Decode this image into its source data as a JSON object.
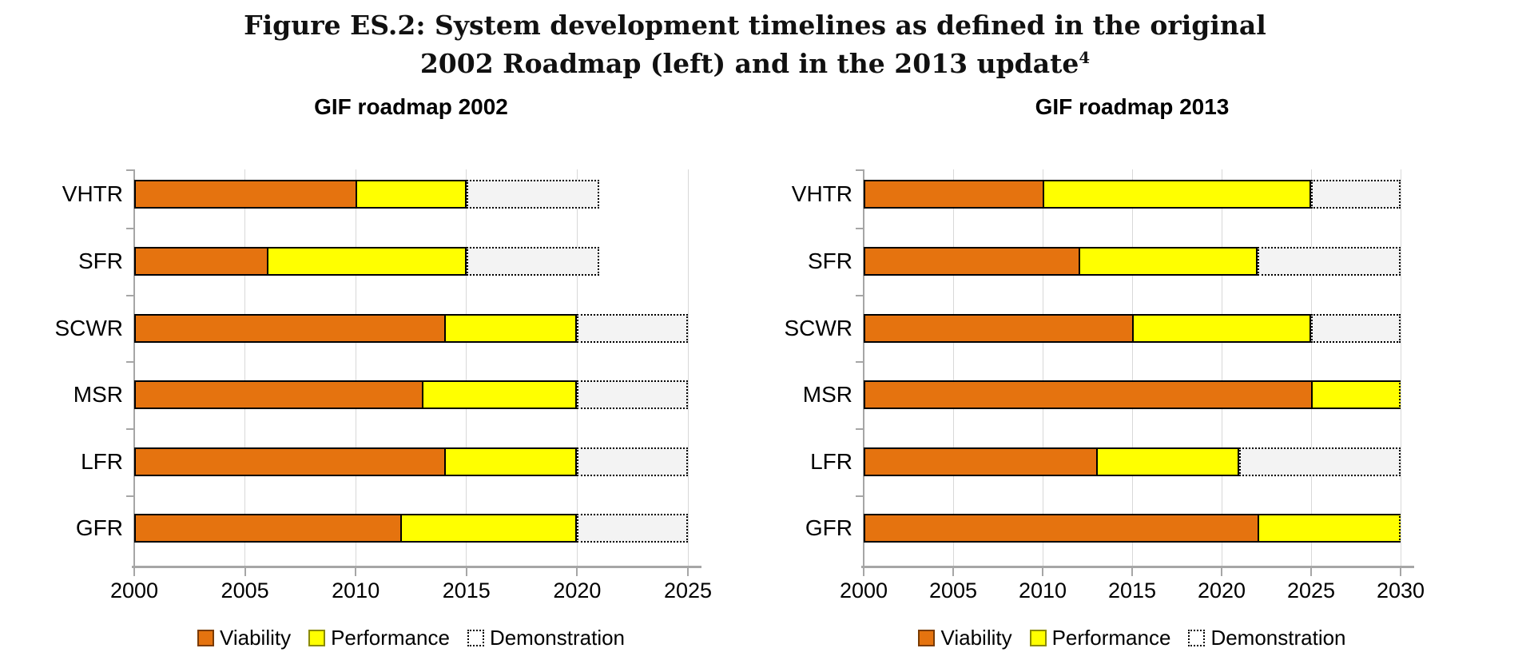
{
  "figure": {
    "title_line1": "Figure ES.2: System development timelines as defined in the original",
    "title_line2": "2002 Roadmap (left) and in the 2013 update",
    "title_superscript": "4"
  },
  "legend": {
    "viability": "Viability",
    "performance": "Performance",
    "demonstration": "Demonstration"
  },
  "colors": {
    "viability": "#E5730F",
    "performance": "#FFFF00",
    "demonstration_fill": "#F3F3F3",
    "bar_border": "#000000",
    "gridline": "#D8D8D8",
    "axis": "#A6A6A6"
  },
  "chart_data": [
    {
      "type": "bar",
      "orientation": "horizontal-stacked-timeline",
      "title": "GIF roadmap 2002",
      "x_axis": {
        "min": 2000,
        "max": 2025,
        "tick_step": 5,
        "ticks": [
          2000,
          2005,
          2010,
          2015,
          2020,
          2025
        ]
      },
      "categories": [
        "VHTR",
        "SFR",
        "SCWR",
        "MSR",
        "LFR",
        "GFR"
      ],
      "legend_position": "bottom",
      "grid": true,
      "rows": [
        {
          "label": "VHTR",
          "viability": [
            2000,
            2010
          ],
          "performance": [
            2010,
            2015
          ],
          "demonstration": [
            2015,
            2021
          ],
          "clipped": false
        },
        {
          "label": "SFR",
          "viability": [
            2000,
            2006
          ],
          "performance": [
            2006,
            2015
          ],
          "demonstration": [
            2015,
            2021
          ],
          "clipped": false
        },
        {
          "label": "SCWR",
          "viability": [
            2000,
            2014
          ],
          "performance": [
            2014,
            2020
          ],
          "demonstration": [
            2020,
            2025
          ],
          "clipped": false
        },
        {
          "label": "MSR",
          "viability": [
            2000,
            2013
          ],
          "performance": [
            2013,
            2020
          ],
          "demonstration": [
            2020,
            2025
          ],
          "clipped": false
        },
        {
          "label": "LFR",
          "viability": [
            2000,
            2014
          ],
          "performance": [
            2014,
            2020
          ],
          "demonstration": [
            2020,
            2025
          ],
          "clipped": false
        },
        {
          "label": "GFR",
          "viability": [
            2000,
            2012
          ],
          "performance": [
            2012,
            2020
          ],
          "demonstration": [
            2020,
            2025
          ],
          "clipped": false
        }
      ]
    },
    {
      "type": "bar",
      "orientation": "horizontal-stacked-timeline",
      "title": "GIF roadmap 2013",
      "x_axis": {
        "min": 2000,
        "max": 2030,
        "tick_step": 5,
        "ticks": [
          2000,
          2005,
          2010,
          2015,
          2020,
          2025,
          2030
        ]
      },
      "categories": [
        "VHTR",
        "SFR",
        "SCWR",
        "MSR",
        "LFR",
        "GFR"
      ],
      "legend_position": "bottom",
      "grid": true,
      "rows": [
        {
          "label": "VHTR",
          "viability": [
            2000,
            2010
          ],
          "performance": [
            2010,
            2025
          ],
          "demonstration": [
            2025,
            2030
          ],
          "clipped": false
        },
        {
          "label": "SFR",
          "viability": [
            2000,
            2012
          ],
          "performance": [
            2012,
            2022
          ],
          "demonstration": [
            2022,
            2030
          ],
          "clipped": false
        },
        {
          "label": "SCWR",
          "viability": [
            2000,
            2015
          ],
          "performance": [
            2015,
            2025
          ],
          "demonstration": [
            2025,
            2030
          ],
          "clipped": false
        },
        {
          "label": "MSR",
          "viability": [
            2000,
            2025
          ],
          "performance": [
            2025,
            2030
          ],
          "demonstration": null,
          "clipped": true
        },
        {
          "label": "LFR",
          "viability": [
            2000,
            2013
          ],
          "performance": [
            2013,
            2021
          ],
          "demonstration": [
            2021,
            2030
          ],
          "clipped": false
        },
        {
          "label": "GFR",
          "viability": [
            2000,
            2022
          ],
          "performance": [
            2022,
            2030
          ],
          "demonstration": null,
          "clipped": true
        }
      ]
    }
  ]
}
